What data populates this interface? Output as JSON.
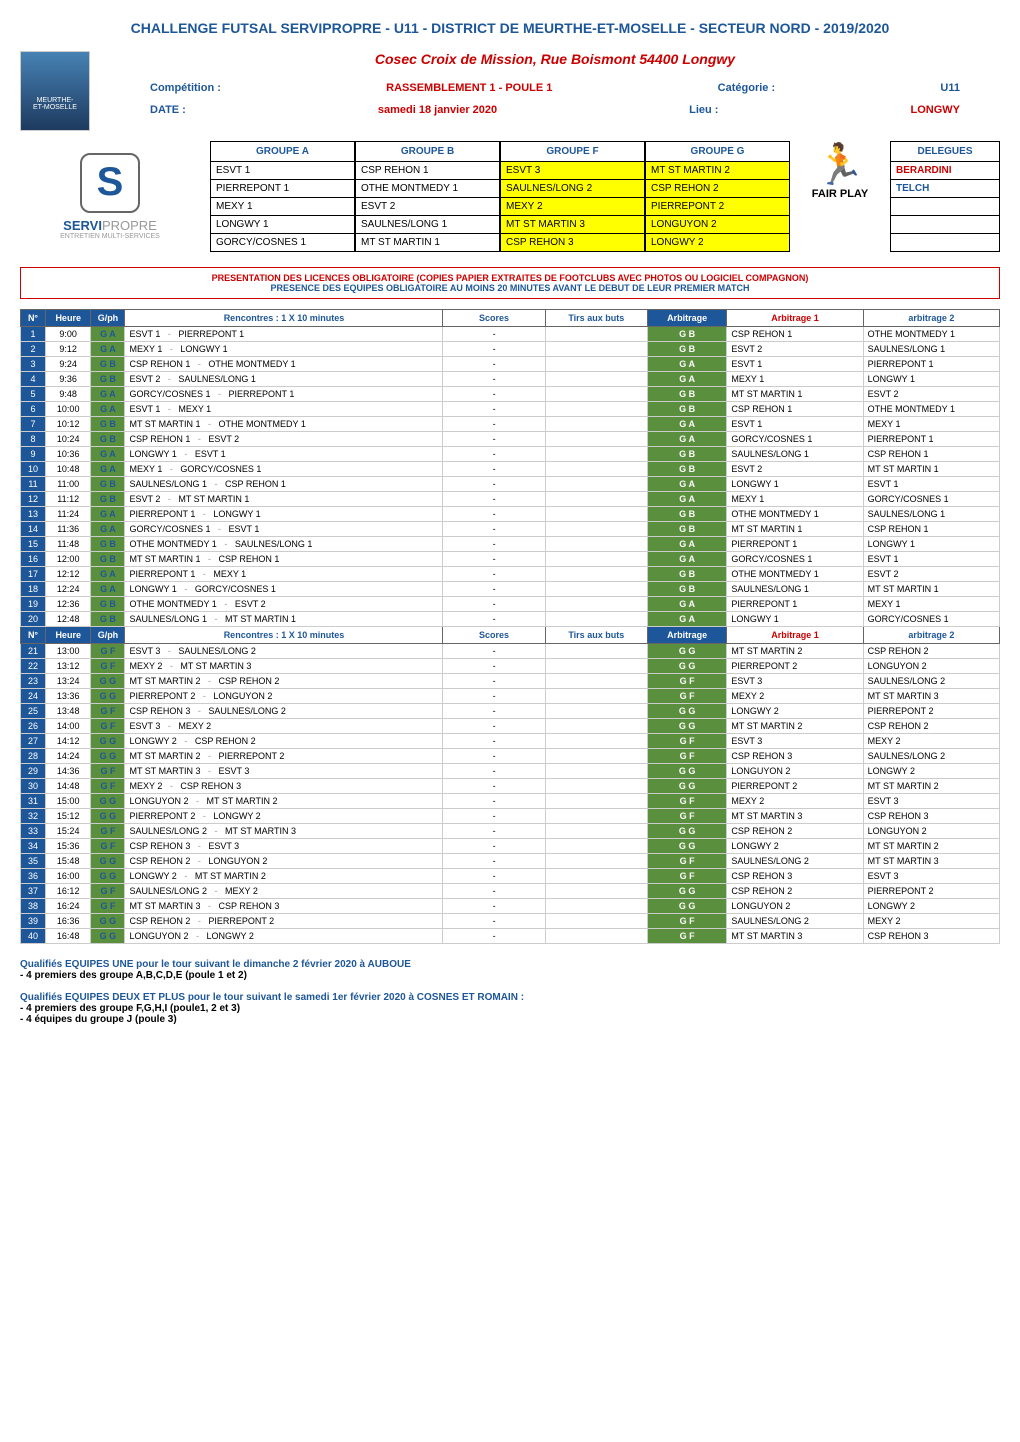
{
  "pageTitle": "CHALLENGE FUTSAL SERVIPROPRE - U11  - DISTRICT DE MEURTHE-ET-MOSELLE - SECTEUR NORD - 2019/2020",
  "venue": "Cosec Croix de Mission, Rue Boismont 54400 Longwy",
  "competition": {
    "label": "Compétition :",
    "value": "RASSEMBLEMENT 1 - POULE 1"
  },
  "categorie": {
    "label": "Catégorie :",
    "value": "U11"
  },
  "date": {
    "label": "DATE :",
    "value": "samedi 18 janvier 2020"
  },
  "lieu": {
    "label": "Lieu :",
    "value": "LONGWY"
  },
  "sponsor": {
    "name1": "SERVI",
    "name2": "PROPRE",
    "sub": "ENTRETIEN MULTI-SERVICES",
    "url": "www.servipropre.com"
  },
  "groups": {
    "A": {
      "header": "GROUPE A",
      "teams": [
        "ESVT 1",
        "PIERREPONT 1",
        "MEXY 1",
        "LONGWY 1",
        "GORCY/COSNES 1"
      ]
    },
    "B": {
      "header": "GROUPE B",
      "teams": [
        "CSP REHON 1",
        "OTHE MONTMEDY 1",
        "ESVT 2",
        "SAULNES/LONG 1",
        "MT ST MARTIN 1"
      ]
    },
    "F": {
      "header": "GROUPE F",
      "teams": [
        "ESVT 3",
        "SAULNES/LONG 2",
        "MEXY 2",
        "MT ST MARTIN 3",
        "CSP REHON 3"
      ]
    },
    "G": {
      "header": "GROUPE G",
      "teams": [
        "MT ST MARTIN 2",
        "CSP REHON  2",
        "PIERREPONT 2",
        "LONGUYON 2",
        "LONGWY 2"
      ]
    }
  },
  "fairplay": "FAIR PLAY",
  "delegues": {
    "header": "DELEGUES",
    "items": [
      "BERARDINI",
      "TELCH",
      "",
      "",
      ""
    ]
  },
  "notice": {
    "line1": "PRESENTATION DES LICENCES OBLIGATOIRE (COPIES PAPIER EXTRAITES DE FOOTCLUBS AVEC PHOTOS OU LOGICIEL COMPAGNON)",
    "line2": "PRESENCE DES EQUIPES OBLIGATOIRE AU MOINS 20 MINUTES AVANT LE DEBUT DE LEUR PREMIER MATCH"
  },
  "tableHeaders": {
    "n": "N°",
    "heure": "Heure",
    "gph": "G/ph",
    "rencontres": "Rencontres :  1 X 10 minutes",
    "scores": "Scores",
    "tirs": "Tirs aux buts",
    "arbitrage": "Arbitrage",
    "arbitrage1": "Arbitrage 1",
    "arbitrage2": "arbitrage 2"
  },
  "matches1": [
    {
      "n": 1,
      "h": "9:00",
      "g": "G A",
      "t1": "ESVT 1",
      "t2": "PIERREPONT 1",
      "s": "-",
      "arb": "G B",
      "a1": "CSP REHON 1",
      "a2": "OTHE MONTMEDY 1"
    },
    {
      "n": 2,
      "h": "9:12",
      "g": "G A",
      "t1": "MEXY 1",
      "t2": "LONGWY 1",
      "s": "-",
      "arb": "G B",
      "a1": "ESVT 2",
      "a2": "SAULNES/LONG 1"
    },
    {
      "n": 3,
      "h": "9:24",
      "g": "G B",
      "t1": "CSP REHON 1",
      "t2": "OTHE MONTMEDY 1",
      "s": "-",
      "arb": "G A",
      "a1": "ESVT 1",
      "a2": "PIERREPONT 1"
    },
    {
      "n": 4,
      "h": "9:36",
      "g": "G B",
      "t1": "ESVT 2",
      "t2": "SAULNES/LONG 1",
      "s": "-",
      "arb": "G A",
      "a1": "MEXY 1",
      "a2": "LONGWY 1"
    },
    {
      "n": 5,
      "h": "9:48",
      "g": "G A",
      "t1": "GORCY/COSNES 1",
      "t2": "PIERREPONT 1",
      "s": "-",
      "arb": "G B",
      "a1": "MT ST MARTIN 1",
      "a2": "ESVT 2"
    },
    {
      "n": 6,
      "h": "10:00",
      "g": "G A",
      "t1": "ESVT 1",
      "t2": "MEXY 1",
      "s": "-",
      "arb": "G B",
      "a1": "CSP REHON 1",
      "a2": "OTHE MONTMEDY 1"
    },
    {
      "n": 7,
      "h": "10:12",
      "g": "G B",
      "t1": "MT ST MARTIN 1",
      "t2": "OTHE MONTMEDY 1",
      "s": "-",
      "arb": "G A",
      "a1": "ESVT 1",
      "a2": "MEXY 1"
    },
    {
      "n": 8,
      "h": "10:24",
      "g": "G B",
      "t1": "CSP REHON 1",
      "t2": "ESVT 2",
      "s": "-",
      "arb": "G A",
      "a1": "GORCY/COSNES 1",
      "a2": "PIERREPONT 1"
    },
    {
      "n": 9,
      "h": "10:36",
      "g": "G A",
      "t1": "LONGWY 1",
      "t2": "ESVT 1",
      "s": "-",
      "arb": "G B",
      "a1": "SAULNES/LONG 1",
      "a2": "CSP REHON 1"
    },
    {
      "n": 10,
      "h": "10:48",
      "g": "G A",
      "t1": "MEXY 1",
      "t2": "GORCY/COSNES 1",
      "s": "-",
      "arb": "G B",
      "a1": "ESVT 2",
      "a2": "MT ST MARTIN 1"
    },
    {
      "n": 11,
      "h": "11:00",
      "g": "G B",
      "t1": "SAULNES/LONG 1",
      "t2": "CSP REHON 1",
      "s": "-",
      "arb": "G A",
      "a1": "LONGWY 1",
      "a2": "ESVT 1"
    },
    {
      "n": 12,
      "h": "11:12",
      "g": "G B",
      "t1": "ESVT 2",
      "t2": "MT ST MARTIN 1",
      "s": "-",
      "arb": "G A",
      "a1": "MEXY 1",
      "a2": "GORCY/COSNES 1"
    },
    {
      "n": 13,
      "h": "11:24",
      "g": "G A",
      "t1": "PIERREPONT 1",
      "t2": "LONGWY 1",
      "s": "-",
      "arb": "G B",
      "a1": "OTHE MONTMEDY 1",
      "a2": "SAULNES/LONG 1"
    },
    {
      "n": 14,
      "h": "11:36",
      "g": "G A",
      "t1": "GORCY/COSNES 1",
      "t2": "ESVT 1",
      "s": "-",
      "arb": "G B",
      "a1": "MT ST MARTIN 1",
      "a2": "CSP REHON 1"
    },
    {
      "n": 15,
      "h": "11:48",
      "g": "G B",
      "t1": "OTHE MONTMEDY 1",
      "t2": "SAULNES/LONG 1",
      "s": "-",
      "arb": "G A",
      "a1": "PIERREPONT 1",
      "a2": "LONGWY 1"
    },
    {
      "n": 16,
      "h": "12:00",
      "g": "G B",
      "t1": "MT ST MARTIN 1",
      "t2": "CSP REHON 1",
      "s": "-",
      "arb": "G A",
      "a1": "GORCY/COSNES 1",
      "a2": "ESVT 1"
    },
    {
      "n": 17,
      "h": "12:12",
      "g": "G A",
      "t1": "PIERREPONT 1",
      "t2": "MEXY 1",
      "s": "-",
      "arb": "G B",
      "a1": "OTHE MONTMEDY 1",
      "a2": "ESVT 2"
    },
    {
      "n": 18,
      "h": "12:24",
      "g": "G A",
      "t1": "LONGWY 1",
      "t2": "GORCY/COSNES 1",
      "s": "-",
      "arb": "G B",
      "a1": "SAULNES/LONG 1",
      "a2": "MT ST MARTIN 1"
    },
    {
      "n": 19,
      "h": "12:36",
      "g": "G B",
      "t1": "OTHE MONTMEDY 1",
      "t2": "ESVT 2",
      "s": "-",
      "arb": "G A",
      "a1": "PIERREPONT 1",
      "a2": "MEXY 1"
    },
    {
      "n": 20,
      "h": "12:48",
      "g": "G B",
      "t1": "SAULNES/LONG 1",
      "t2": "MT ST MARTIN 1",
      "s": "-",
      "arb": "G A",
      "a1": "LONGWY 1",
      "a2": "GORCY/COSNES 1"
    }
  ],
  "matches2": [
    {
      "n": 21,
      "h": "13:00",
      "g": "G F",
      "t1": "ESVT 3",
      "t2": "SAULNES/LONG 2",
      "s": "-",
      "arb": "G G",
      "a1": "MT ST MARTIN 2",
      "a2": "CSP REHON  2"
    },
    {
      "n": 22,
      "h": "13:12",
      "g": "G F",
      "t1": "MEXY 2",
      "t2": "MT ST MARTIN 3",
      "s": "-",
      "arb": "G G",
      "a1": "PIERREPONT 2",
      "a2": "LONGUYON 2"
    },
    {
      "n": 23,
      "h": "13:24",
      "g": "G G",
      "t1": "MT ST MARTIN 2",
      "t2": "CSP REHON  2",
      "s": "-",
      "arb": "G F",
      "a1": "ESVT 3",
      "a2": "SAULNES/LONG 2"
    },
    {
      "n": 24,
      "h": "13:36",
      "g": "G G",
      "t1": "PIERREPONT 2",
      "t2": "LONGUYON 2",
      "s": "-",
      "arb": "G F",
      "a1": "MEXY 2",
      "a2": "MT ST MARTIN 3"
    },
    {
      "n": 25,
      "h": "13:48",
      "g": "G F",
      "t1": "CSP REHON 3",
      "t2": "SAULNES/LONG 2",
      "s": "-",
      "arb": "G G",
      "a1": "LONGWY 2",
      "a2": "PIERREPONT 2"
    },
    {
      "n": 26,
      "h": "14:00",
      "g": "G F",
      "t1": "ESVT 3",
      "t2": "MEXY 2",
      "s": "-",
      "arb": "G G",
      "a1": "MT ST MARTIN 2",
      "a2": "CSP REHON  2"
    },
    {
      "n": 27,
      "h": "14:12",
      "g": "G G",
      "t1": "LONGWY 2",
      "t2": "CSP REHON  2",
      "s": "-",
      "arb": "G F",
      "a1": "ESVT 3",
      "a2": "MEXY 2"
    },
    {
      "n": 28,
      "h": "14:24",
      "g": "G G",
      "t1": "MT ST MARTIN 2",
      "t2": "PIERREPONT 2",
      "s": "-",
      "arb": "G F",
      "a1": "CSP REHON 3",
      "a2": "SAULNES/LONG 2"
    },
    {
      "n": 29,
      "h": "14:36",
      "g": "G F",
      "t1": "MT ST MARTIN 3",
      "t2": "ESVT 3",
      "s": "-",
      "arb": "G G",
      "a1": "LONGUYON 2",
      "a2": "LONGWY 2"
    },
    {
      "n": 30,
      "h": "14:48",
      "g": "G F",
      "t1": "MEXY 2",
      "t2": "CSP REHON 3",
      "s": "-",
      "arb": "G G",
      "a1": "PIERREPONT 2",
      "a2": "MT ST MARTIN 2"
    },
    {
      "n": 31,
      "h": "15:00",
      "g": "G G",
      "t1": "LONGUYON 2",
      "t2": "MT ST MARTIN 2",
      "s": "-",
      "arb": "G F",
      "a1": "MEXY 2",
      "a2": "ESVT 3"
    },
    {
      "n": 32,
      "h": "15:12",
      "g": "G G",
      "t1": "PIERREPONT 2",
      "t2": "LONGWY 2",
      "s": "-",
      "arb": "G F",
      "a1": "MT ST MARTIN 3",
      "a2": "CSP REHON 3"
    },
    {
      "n": 33,
      "h": "15:24",
      "g": "G F",
      "t1": "SAULNES/LONG 2",
      "t2": "MT ST MARTIN 3",
      "s": "-",
      "arb": "G G",
      "a1": "CSP REHON  2",
      "a2": "LONGUYON 2"
    },
    {
      "n": 34,
      "h": "15:36",
      "g": "G F",
      "t1": "CSP REHON 3",
      "t2": "ESVT 3",
      "s": "-",
      "arb": "G G",
      "a1": "LONGWY 2",
      "a2": "MT ST MARTIN 2"
    },
    {
      "n": 35,
      "h": "15:48",
      "g": "G G",
      "t1": "CSP REHON  2",
      "t2": "LONGUYON 2",
      "s": "-",
      "arb": "G F",
      "a1": "SAULNES/LONG 2",
      "a2": "MT ST MARTIN 3"
    },
    {
      "n": 36,
      "h": "16:00",
      "g": "G G",
      "t1": "LONGWY 2",
      "t2": "MT ST MARTIN 2",
      "s": "-",
      "arb": "G F",
      "a1": "CSP REHON 3",
      "a2": "ESVT 3"
    },
    {
      "n": 37,
      "h": "16:12",
      "g": "G F",
      "t1": "SAULNES/LONG 2",
      "t2": "MEXY 2",
      "s": "-",
      "arb": "G G",
      "a1": "CSP REHON  2",
      "a2": "PIERREPONT 2"
    },
    {
      "n": 38,
      "h": "16:24",
      "g": "G F",
      "t1": "MT ST MARTIN 3",
      "t2": "CSP REHON 3",
      "s": "-",
      "arb": "G G",
      "a1": "LONGUYON 2",
      "a2": "LONGWY 2"
    },
    {
      "n": 39,
      "h": "16:36",
      "g": "G G",
      "t1": "CSP REHON  2",
      "t2": "PIERREPONT 2",
      "s": "-",
      "arb": "G F",
      "a1": "SAULNES/LONG 2",
      "a2": "MEXY 2"
    },
    {
      "n": 40,
      "h": "16:48",
      "g": "G G",
      "t1": "LONGUYON 2",
      "t2": "LONGWY 2",
      "s": "-",
      "arb": "G F",
      "a1": "MT ST MARTIN 3",
      "a2": "CSP REHON 3"
    }
  ],
  "footer": {
    "line1": "Qualifiés EQUIPES UNE pour le tour suivant le dimanche 2 février 2020 à AUBOUE",
    "line2": " - 4 premiers des groupe A,B,C,D,E (poule 1 et 2)",
    "line3": "Qualifiés EQUIPES DEUX ET PLUS pour le tour suivant le samedi 1er février 2020 à COSNES ET ROMAIN :",
    "line4": " - 4 premiers des groupe F,G,H,I (poule1, 2 et 3)",
    "line5": " - 4 équipes du groupe J (poule 3)"
  },
  "colors": {
    "headerBlue": "#1e5799",
    "red": "#c00",
    "yellow": "#ffff00",
    "green": "#5a8f3d",
    "border": "#000"
  }
}
